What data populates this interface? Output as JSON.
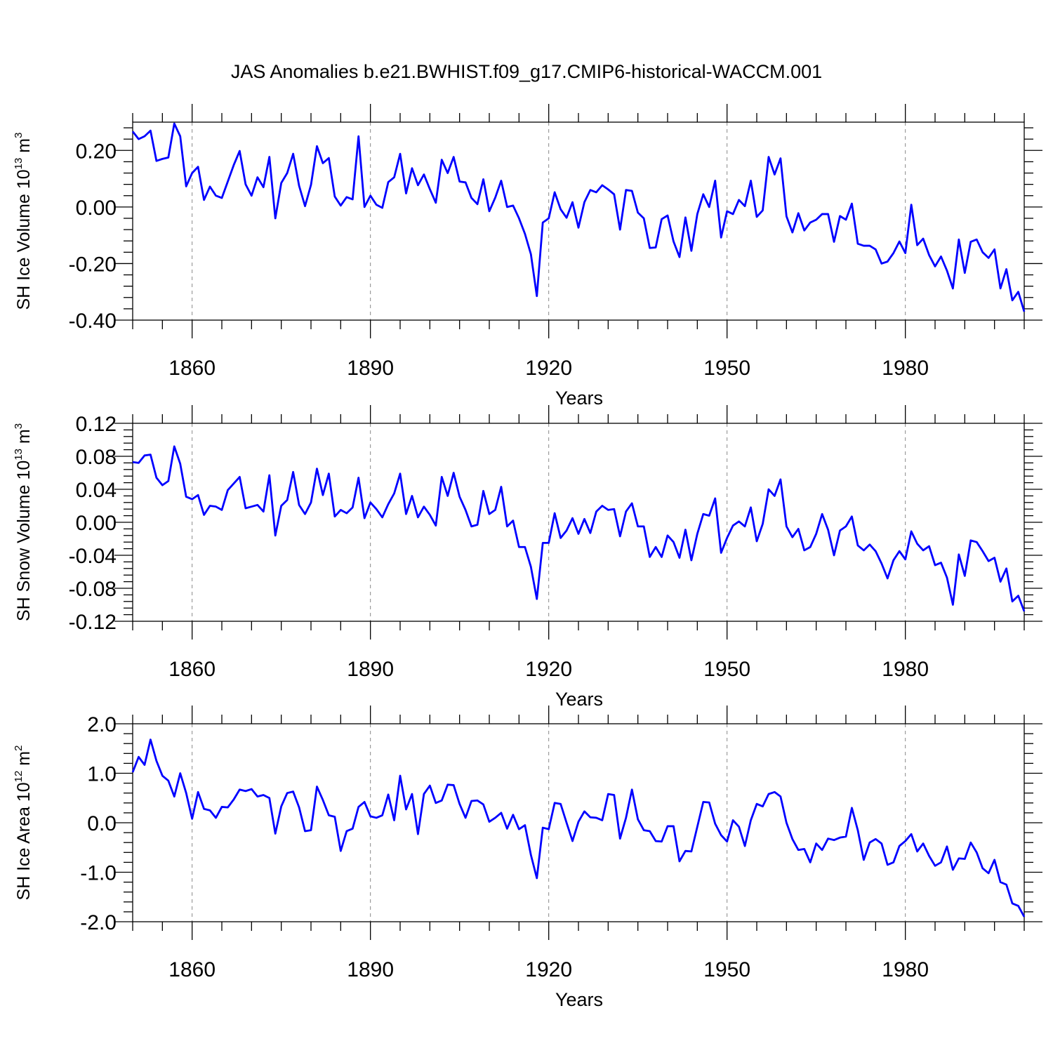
{
  "title": "JAS Anomalies b.e21.BWHIST.f09_g17.CMIP6-historical-WACCM.001",
  "colors": {
    "line": "#0000ff",
    "axis": "#000000",
    "grid": "#888888"
  },
  "chart_data": [
    {
      "type": "line",
      "ylabel": {
        "text": "SH Ice Volume 10",
        "exp": "13",
        "unit": " m",
        "unit_exp": "3"
      },
      "xlabel": "Years",
      "xlim": [
        1850,
        2000
      ],
      "ylim": [
        -0.4,
        0.3
      ],
      "yticks": [
        -0.4,
        -0.2,
        0.0,
        0.2
      ],
      "ytick_labels": [
        "-0.40",
        "-0.20",
        "0.00",
        "0.20"
      ],
      "xticks": [
        1860,
        1890,
        1920,
        1950,
        1980
      ],
      "xtick_labels": [
        "1860",
        "1890",
        "1920",
        "1950",
        "1980"
      ],
      "x_start": 1850,
      "values": [
        0.267,
        0.24,
        0.25,
        0.27,
        0.163,
        0.17,
        0.175,
        0.295,
        0.25,
        0.073,
        0.12,
        0.142,
        0.025,
        0.072,
        0.04,
        0.032,
        0.09,
        0.148,
        0.198,
        0.08,
        0.04,
        0.105,
        0.07,
        0.177,
        -0.04,
        0.085,
        0.12,
        0.188,
        0.075,
        0.003,
        0.078,
        0.215,
        0.155,
        0.173,
        0.037,
        0.005,
        0.035,
        0.027,
        0.25,
        0.0,
        0.04,
        0.008,
        -0.003,
        0.088,
        0.105,
        0.188,
        0.048,
        0.137,
        0.077,
        0.115,
        0.063,
        0.015,
        0.167,
        0.12,
        0.177,
        0.09,
        0.087,
        0.032,
        0.01,
        0.098,
        -0.015,
        0.033,
        0.093,
        0.0,
        0.005,
        -0.04,
        -0.095,
        -0.167,
        -0.315,
        -0.055,
        -0.04,
        0.052,
        -0.008,
        -0.038,
        0.017,
        -0.073,
        0.017,
        0.06,
        0.052,
        0.077,
        0.062,
        0.045,
        -0.08,
        0.06,
        0.057,
        -0.02,
        -0.04,
        -0.145,
        -0.143,
        -0.043,
        -0.03,
        -0.122,
        -0.177,
        -0.037,
        -0.155,
        -0.025,
        0.045,
        0.0,
        0.093,
        -0.108,
        -0.015,
        -0.025,
        0.025,
        0.003,
        0.093,
        -0.035,
        -0.012,
        0.177,
        0.115,
        0.172,
        -0.033,
        -0.09,
        -0.022,
        -0.083,
        -0.055,
        -0.045,
        -0.025,
        -0.025,
        -0.123,
        -0.032,
        -0.045,
        0.012,
        -0.13,
        -0.137,
        -0.137,
        -0.15,
        -0.2,
        -0.193,
        -0.163,
        -0.122,
        -0.163,
        0.008,
        -0.135,
        -0.112,
        -0.17,
        -0.21,
        -0.175,
        -0.225,
        -0.288,
        -0.115,
        -0.233,
        -0.123,
        -0.115,
        -0.16,
        -0.18,
        -0.15,
        -0.288,
        -0.22,
        -0.33,
        -0.3,
        -0.37
      ]
    },
    {
      "type": "line",
      "ylabel": {
        "text": "SH Snow Volume 10",
        "exp": "13",
        "unit": " m",
        "unit_exp": "3"
      },
      "xlabel": "Years",
      "xlim": [
        1850,
        2000
      ],
      "ylim": [
        -0.12,
        0.12
      ],
      "yticks": [
        -0.12,
        -0.08,
        -0.04,
        0.0,
        0.04,
        0.08,
        0.12
      ],
      "ytick_labels": [
        "-0.12",
        "-0.08",
        "-0.04",
        "0.00",
        "0.04",
        "0.08",
        "0.12"
      ],
      "xticks": [
        1860,
        1890,
        1920,
        1950,
        1980
      ],
      "xtick_labels": [
        "1860",
        "1890",
        "1920",
        "1950",
        "1980"
      ],
      "x_start": 1850,
      "values": [
        0.073,
        0.072,
        0.081,
        0.082,
        0.054,
        0.045,
        0.05,
        0.092,
        0.071,
        0.031,
        0.028,
        0.033,
        0.009,
        0.02,
        0.019,
        0.015,
        0.039,
        0.047,
        0.055,
        0.017,
        0.019,
        0.021,
        0.013,
        0.057,
        -0.016,
        0.02,
        0.027,
        0.061,
        0.021,
        0.01,
        0.024,
        0.065,
        0.033,
        0.059,
        0.007,
        0.015,
        0.011,
        0.018,
        0.054,
        0.005,
        0.024,
        0.016,
        0.006,
        0.022,
        0.035,
        0.059,
        0.01,
        0.032,
        0.006,
        0.019,
        0.009,
        -0.004,
        0.055,
        0.032,
        0.06,
        0.031,
        0.015,
        -0.005,
        -0.003,
        0.038,
        0.01,
        0.015,
        0.043,
        -0.005,
        0.002,
        -0.03,
        -0.03,
        -0.054,
        -0.093,
        -0.025,
        -0.025,
        0.011,
        -0.019,
        -0.01,
        0.005,
        -0.014,
        0.004,
        -0.013,
        0.013,
        0.02,
        0.015,
        0.016,
        -0.017,
        0.013,
        0.023,
        -0.005,
        -0.005,
        -0.042,
        -0.03,
        -0.042,
        -0.016,
        -0.024,
        -0.043,
        -0.009,
        -0.046,
        -0.014,
        0.01,
        0.008,
        0.029,
        -0.037,
        -0.019,
        -0.004,
        0.001,
        -0.005,
        0.018,
        -0.023,
        -0.002,
        0.04,
        0.032,
        0.052,
        -0.005,
        -0.018,
        -0.008,
        -0.034,
        -0.03,
        -0.014,
        0.01,
        -0.009,
        -0.04,
        -0.01,
        -0.005,
        0.007,
        -0.028,
        -0.034,
        -0.027,
        -0.035,
        -0.05,
        -0.068,
        -0.046,
        -0.035,
        -0.045,
        -0.011,
        -0.026,
        -0.034,
        -0.029,
        -0.052,
        -0.049,
        -0.067,
        -0.1,
        -0.039,
        -0.065,
        -0.022,
        -0.024,
        -0.035,
        -0.047,
        -0.043,
        -0.072,
        -0.056,
        -0.096,
        -0.089,
        -0.108
      ]
    },
    {
      "type": "line",
      "ylabel": {
        "text": "SH Ice Area 10",
        "exp": "12",
        "unit": " m",
        "unit_exp": "2"
      },
      "xlabel": "Years",
      "xlim": [
        1850,
        2000
      ],
      "ylim": [
        -2.0,
        2.0
      ],
      "yticks": [
        -2.0,
        -1.0,
        0.0,
        1.0,
        2.0
      ],
      "ytick_labels": [
        "-2.0",
        "-1.0",
        "0.0",
        "1.0",
        "2.0"
      ],
      "xticks": [
        1860,
        1890,
        1920,
        1950,
        1980
      ],
      "xtick_labels": [
        "1860",
        "1890",
        "1920",
        "1950",
        "1980"
      ],
      "x_start": 1850,
      "values": [
        1.02,
        1.33,
        1.17,
        1.68,
        1.25,
        0.95,
        0.85,
        0.53,
        1.0,
        0.6,
        0.08,
        0.62,
        0.28,
        0.25,
        0.1,
        0.32,
        0.31,
        0.47,
        0.67,
        0.64,
        0.68,
        0.53,
        0.56,
        0.5,
        -0.22,
        0.33,
        0.6,
        0.63,
        0.31,
        -0.17,
        -0.15,
        0.73,
        0.46,
        0.15,
        0.12,
        -0.57,
        -0.17,
        -0.12,
        0.32,
        0.42,
        0.13,
        0.1,
        0.15,
        0.57,
        0.05,
        0.95,
        0.27,
        0.58,
        -0.23,
        0.58,
        0.75,
        0.4,
        0.45,
        0.77,
        0.76,
        0.38,
        0.1,
        0.44,
        0.45,
        0.37,
        0.02,
        0.1,
        0.2,
        -0.12,
        0.16,
        -0.13,
        -0.05,
        -0.65,
        -1.12,
        -0.1,
        -0.13,
        0.4,
        0.38,
        0.0,
        -0.37,
        0.02,
        0.23,
        0.11,
        0.1,
        0.05,
        0.58,
        0.56,
        -0.32,
        0.1,
        0.67,
        0.07,
        -0.15,
        -0.17,
        -0.37,
        -0.38,
        -0.07,
        -0.07,
        -0.78,
        -0.57,
        -0.58,
        -0.08,
        0.42,
        0.41,
        -0.02,
        -0.25,
        -0.38,
        0.05,
        -0.08,
        -0.47,
        0.05,
        0.38,
        0.33,
        0.58,
        0.62,
        0.53,
        0.0,
        -0.33,
        -0.55,
        -0.53,
        -0.8,
        -0.42,
        -0.55,
        -0.32,
        -0.35,
        -0.3,
        -0.28,
        0.3,
        -0.15,
        -0.75,
        -0.4,
        -0.33,
        -0.42,
        -0.85,
        -0.8,
        -0.47,
        -0.37,
        -0.23,
        -0.58,
        -0.42,
        -0.67,
        -0.87,
        -0.8,
        -0.48,
        -0.95,
        -0.72,
        -0.73,
        -0.4,
        -0.6,
        -0.92,
        -1.02,
        -0.75,
        -1.2,
        -1.25,
        -1.63,
        -1.68,
        -1.9
      ]
    }
  ]
}
